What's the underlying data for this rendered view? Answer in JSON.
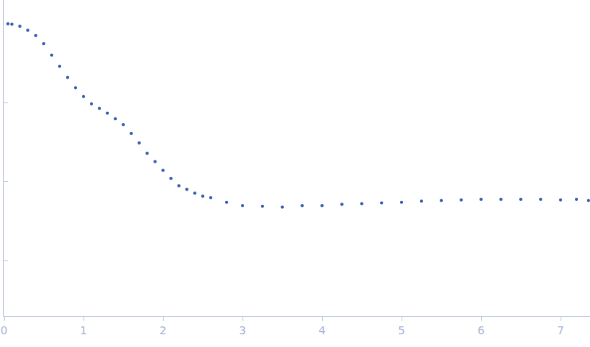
{
  "chart_data": {
    "type": "scatter",
    "marker": "dot",
    "color": "#3a62b0",
    "log": "y",
    "grid": false,
    "tick_labels": "x",
    "x": [
      0.05,
      0.1,
      0.2,
      0.3,
      0.4,
      0.5,
      0.6,
      0.7,
      0.8,
      0.9,
      1.0,
      1.1,
      1.2,
      1.3,
      1.4,
      1.5,
      1.6,
      1.7,
      1.8,
      1.9,
      2.0,
      2.1,
      2.2,
      2.3,
      2.4,
      2.5,
      2.6,
      2.8,
      3.0,
      3.25,
      3.5,
      3.75,
      4.0,
      4.25,
      4.5,
      4.75,
      5.0,
      5.25,
      5.5,
      5.75,
      6.0,
      6.25,
      6.5,
      6.75,
      7.0,
      7.2,
      7.35
    ],
    "values": [
      1.0,
      0.99,
      0.93,
      0.83,
      0.71,
      0.56,
      0.4,
      0.29,
      0.21,
      0.155,
      0.12,
      0.097,
      0.085,
      0.074,
      0.063,
      0.053,
      0.041,
      0.031,
      0.023,
      0.018,
      0.014,
      0.011,
      0.0089,
      0.008,
      0.0072,
      0.0066,
      0.0063,
      0.0055,
      0.005,
      0.0049,
      0.0048,
      0.005,
      0.005,
      0.0052,
      0.0053,
      0.0054,
      0.0055,
      0.0057,
      0.0058,
      0.0059,
      0.006,
      0.006,
      0.006,
      0.006,
      0.0059,
      0.006,
      0.0058
    ],
    "xlim": [
      0,
      7.37
    ],
    "xticks": [
      0,
      1,
      2,
      3,
      4,
      5,
      6,
      7
    ],
    "ylim": [
      0.0002,
      2
    ],
    "yticks": [
      0.001,
      0.01,
      0.1
    ]
  }
}
